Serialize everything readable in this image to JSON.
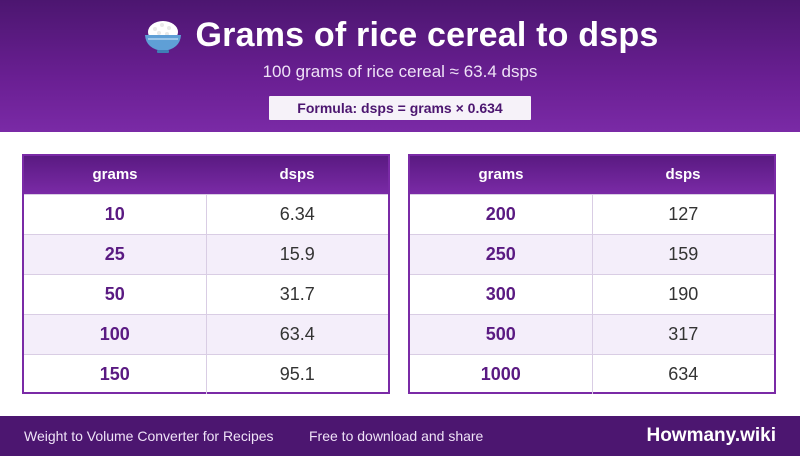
{
  "header": {
    "icon": "rice-bowl-icon",
    "title": "Grams of rice cereal to dsps",
    "subtitle": "100 grams of rice cereal ≈ 63.4 dsps",
    "formula": "Formula: dsps = grams × 0.634"
  },
  "tables": [
    {
      "columns": [
        "grams",
        "dsps"
      ],
      "rows": [
        [
          "10",
          "6.34"
        ],
        [
          "25",
          "15.9"
        ],
        [
          "50",
          "31.7"
        ],
        [
          "100",
          "63.4"
        ],
        [
          "150",
          "95.1"
        ]
      ]
    },
    {
      "columns": [
        "grams",
        "dsps"
      ],
      "rows": [
        [
          "200",
          "127"
        ],
        [
          "250",
          "159"
        ],
        [
          "300",
          "190"
        ],
        [
          "500",
          "317"
        ],
        [
          "1000",
          "634"
        ]
      ]
    }
  ],
  "footer": {
    "left": "Weight to Volume Converter for Recipes",
    "middle": "Free to download and share",
    "brand": "Howmany.wiki"
  },
  "colors": {
    "header_bg": "#6a1f93",
    "accent": "#7a2aa6",
    "footer_bg": "#4c1670"
  }
}
